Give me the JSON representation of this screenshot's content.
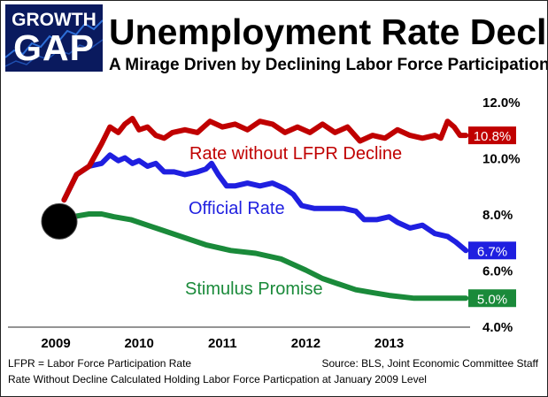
{
  "logo": {
    "line1": "GROWTH",
    "line2": "GAP"
  },
  "title": "Unemployment Rate Decline",
  "subtitle": "A Mirage Driven by Declining Labor Force Participation",
  "footer": {
    "left": "LFPR = Labor Force Participation Rate",
    "right": "Source:  BLS, Joint Economic Committee Staff",
    "bottom": "Rate Without Decline Calculated Holding Labor Force Particpation at January 2009 Level"
  },
  "chart_data": {
    "type": "line",
    "x_tick_labels": [
      "2009",
      "2010",
      "2011",
      "2012",
      "2013"
    ],
    "y_tick_labels": [
      "12.0%",
      "10.0%",
      "8.0%",
      "6.0%",
      "4.0%"
    ],
    "ylim": [
      4.0,
      12.0
    ],
    "xlim": [
      2009.0,
      2013.95
    ],
    "grid": false,
    "start_marker": {
      "x": 2009.0,
      "y": 7.8
    },
    "series": [
      {
        "name": "Rate without LFPR Decline",
        "color": "#c00000",
        "end_label": "10.8%",
        "points": [
          [
            2009.1,
            8.5
          ],
          [
            2009.25,
            9.4
          ],
          [
            2009.4,
            9.7
          ],
          [
            2009.55,
            10.5
          ],
          [
            2009.65,
            11.1
          ],
          [
            2009.75,
            10.9
          ],
          [
            2009.83,
            11.2
          ],
          [
            2009.92,
            11.4
          ],
          [
            2010.0,
            11.0
          ],
          [
            2010.1,
            11.1
          ],
          [
            2010.2,
            10.8
          ],
          [
            2010.3,
            10.7
          ],
          [
            2010.4,
            10.9
          ],
          [
            2010.55,
            11.0
          ],
          [
            2010.7,
            10.9
          ],
          [
            2010.85,
            11.3
          ],
          [
            2011.0,
            11.1
          ],
          [
            2011.15,
            11.2
          ],
          [
            2011.3,
            11.0
          ],
          [
            2011.45,
            11.3
          ],
          [
            2011.6,
            11.2
          ],
          [
            2011.75,
            10.9
          ],
          [
            2011.9,
            11.1
          ],
          [
            2012.05,
            10.9
          ],
          [
            2012.2,
            11.2
          ],
          [
            2012.35,
            10.9
          ],
          [
            2012.5,
            11.1
          ],
          [
            2012.65,
            10.6
          ],
          [
            2012.8,
            10.8
          ],
          [
            2012.95,
            10.7
          ],
          [
            2013.1,
            11.0
          ],
          [
            2013.25,
            10.8
          ],
          [
            2013.4,
            10.7
          ],
          [
            2013.55,
            10.8
          ],
          [
            2013.62,
            10.7
          ],
          [
            2013.7,
            11.3
          ],
          [
            2013.78,
            11.1
          ],
          [
            2013.85,
            10.8
          ],
          [
            2013.92,
            10.8
          ]
        ]
      },
      {
        "name": "Official Rate",
        "color": "#1f1fe0",
        "end_label": "6.7%",
        "points": [
          [
            2009.1,
            8.5
          ],
          [
            2009.25,
            9.4
          ],
          [
            2009.4,
            9.7
          ],
          [
            2009.55,
            9.8
          ],
          [
            2009.65,
            10.1
          ],
          [
            2009.75,
            9.9
          ],
          [
            2009.83,
            10.0
          ],
          [
            2009.92,
            9.8
          ],
          [
            2010.0,
            9.9
          ],
          [
            2010.1,
            9.7
          ],
          [
            2010.2,
            9.8
          ],
          [
            2010.3,
            9.5
          ],
          [
            2010.42,
            9.5
          ],
          [
            2010.55,
            9.4
          ],
          [
            2010.7,
            9.5
          ],
          [
            2010.8,
            9.6
          ],
          [
            2010.87,
            9.8
          ],
          [
            2010.95,
            9.4
          ],
          [
            2011.05,
            9.0
          ],
          [
            2011.15,
            9.0
          ],
          [
            2011.3,
            9.1
          ],
          [
            2011.45,
            9.0
          ],
          [
            2011.6,
            9.1
          ],
          [
            2011.75,
            8.9
          ],
          [
            2011.85,
            8.7
          ],
          [
            2011.95,
            8.3
          ],
          [
            2012.1,
            8.2
          ],
          [
            2012.3,
            8.2
          ],
          [
            2012.45,
            8.2
          ],
          [
            2012.6,
            8.1
          ],
          [
            2012.7,
            7.8
          ],
          [
            2012.85,
            7.8
          ],
          [
            2013.0,
            7.9
          ],
          [
            2013.1,
            7.7
          ],
          [
            2013.25,
            7.5
          ],
          [
            2013.4,
            7.6
          ],
          [
            2013.55,
            7.3
          ],
          [
            2013.7,
            7.2
          ],
          [
            2013.8,
            7.0
          ],
          [
            2013.92,
            6.7
          ]
        ]
      },
      {
        "name": "Stimulus Promise",
        "color": "#1a8a3a",
        "end_label": "5.0%",
        "points": [
          [
            2009.0,
            7.8
          ],
          [
            2009.2,
            7.9
          ],
          [
            2009.4,
            8.0
          ],
          [
            2009.55,
            8.0
          ],
          [
            2009.7,
            7.9
          ],
          [
            2009.9,
            7.8
          ],
          [
            2010.2,
            7.5
          ],
          [
            2010.5,
            7.2
          ],
          [
            2010.8,
            6.9
          ],
          [
            2011.1,
            6.7
          ],
          [
            2011.4,
            6.6
          ],
          [
            2011.7,
            6.4
          ],
          [
            2011.85,
            6.2
          ],
          [
            2012.0,
            6.0
          ],
          [
            2012.2,
            5.7
          ],
          [
            2012.4,
            5.5
          ],
          [
            2012.6,
            5.3
          ],
          [
            2012.8,
            5.2
          ],
          [
            2013.0,
            5.1
          ],
          [
            2013.3,
            5.0
          ],
          [
            2013.6,
            5.0
          ],
          [
            2013.92,
            5.0
          ]
        ]
      }
    ]
  }
}
